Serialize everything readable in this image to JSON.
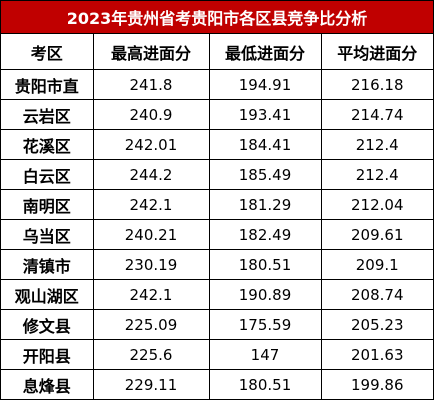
{
  "title": "2023年贵州省考贵阳市各区县竞争比分析",
  "table": {
    "header": [
      "考区",
      "最高进面分",
      "最低进面分",
      "平均进面分"
    ],
    "rows": [
      [
        "贵阳市直",
        241.8,
        194.91,
        216.18
      ],
      [
        "云岩区",
        240.9,
        193.41,
        214.74
      ],
      [
        "花溪区",
        242.01,
        184.41,
        212.4
      ],
      [
        "白云区",
        244.2,
        185.49,
        212.4
      ],
      [
        "南明区",
        242.1,
        181.29,
        212.04
      ],
      [
        "乌当区",
        240.21,
        182.49,
        209.61
      ],
      [
        "清镇市",
        230.19,
        180.51,
        209.1
      ],
      [
        "观山湖区",
        242.1,
        190.89,
        208.74
      ],
      [
        "修文县",
        225.09,
        175.59,
        205.23
      ],
      [
        "开阳县",
        225.6,
        147,
        201.63
      ],
      [
        "息烽县",
        229.11,
        180.51,
        199.86
      ]
    ]
  }
}
